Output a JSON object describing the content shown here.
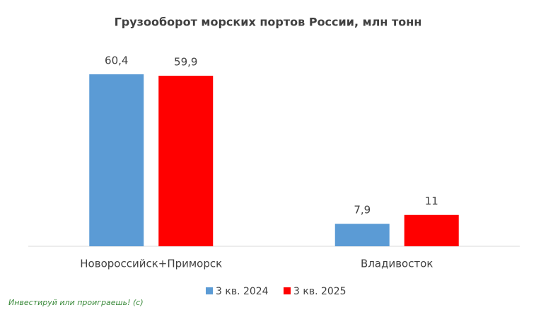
{
  "chart_data": {
    "type": "bar",
    "title": "Грузооборот морских портов России, млн тонн",
    "categories": [
      "Новороссийск+Приморск",
      "Владивосток"
    ],
    "series": [
      {
        "name": "3 кв. 2024",
        "color": "#5b9bd5",
        "values": [
          60.4,
          7.9
        ],
        "value_labels": [
          "60,4",
          "7,9"
        ]
      },
      {
        "name": "3 кв. 2025",
        "color": "#ff0000",
        "values": [
          59.9,
          11
        ],
        "value_labels": [
          "59,9",
          "11"
        ]
      }
    ],
    "legend": "bottom",
    "watermark": "Инвестируй или проиграешь! (с)"
  }
}
